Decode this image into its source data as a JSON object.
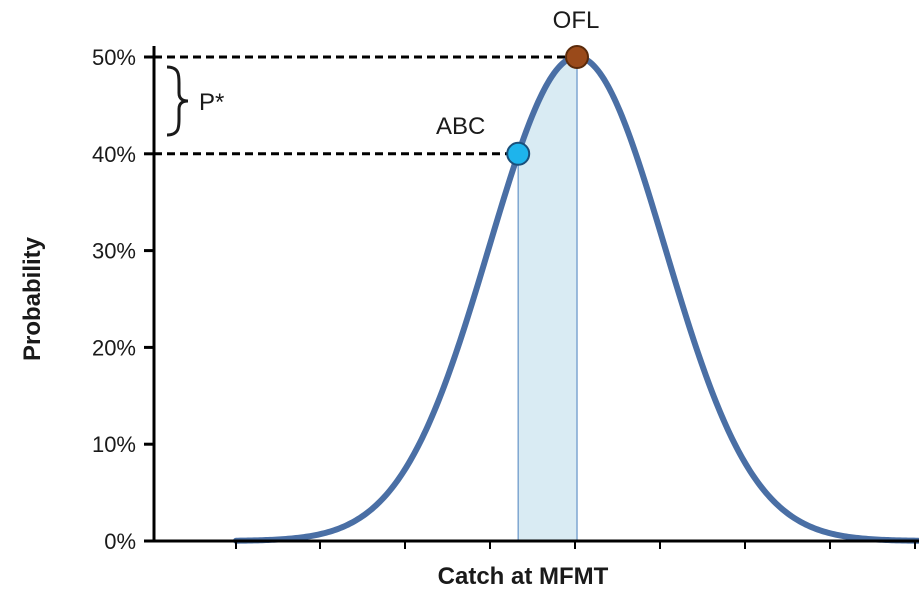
{
  "chart_data": {
    "type": "line",
    "xlabel": "Catch at MFMT",
    "ylabel": "Probability",
    "ylim": [
      0,
      0.5
    ],
    "y_ticks": [
      0,
      0.1,
      0.2,
      0.3,
      0.4,
      0.5
    ],
    "y_tick_labels": [
      "0%",
      "10%",
      "20%",
      "30%",
      "40%",
      "50%"
    ],
    "grid": false,
    "series": [
      {
        "values": "normal distribution, peak probability 0.5 at OFL",
        "color": "#4a6fa5"
      }
    ],
    "points": [
      {
        "label": "ABC",
        "y": 0.4,
        "color": "#1eb4ec"
      },
      {
        "label": "OFL",
        "y": 0.5,
        "color": "#9a4a1a"
      }
    ],
    "annotations": {
      "bracket_label": "P*",
      "shaded_region_color": "#d9ebf3"
    }
  }
}
